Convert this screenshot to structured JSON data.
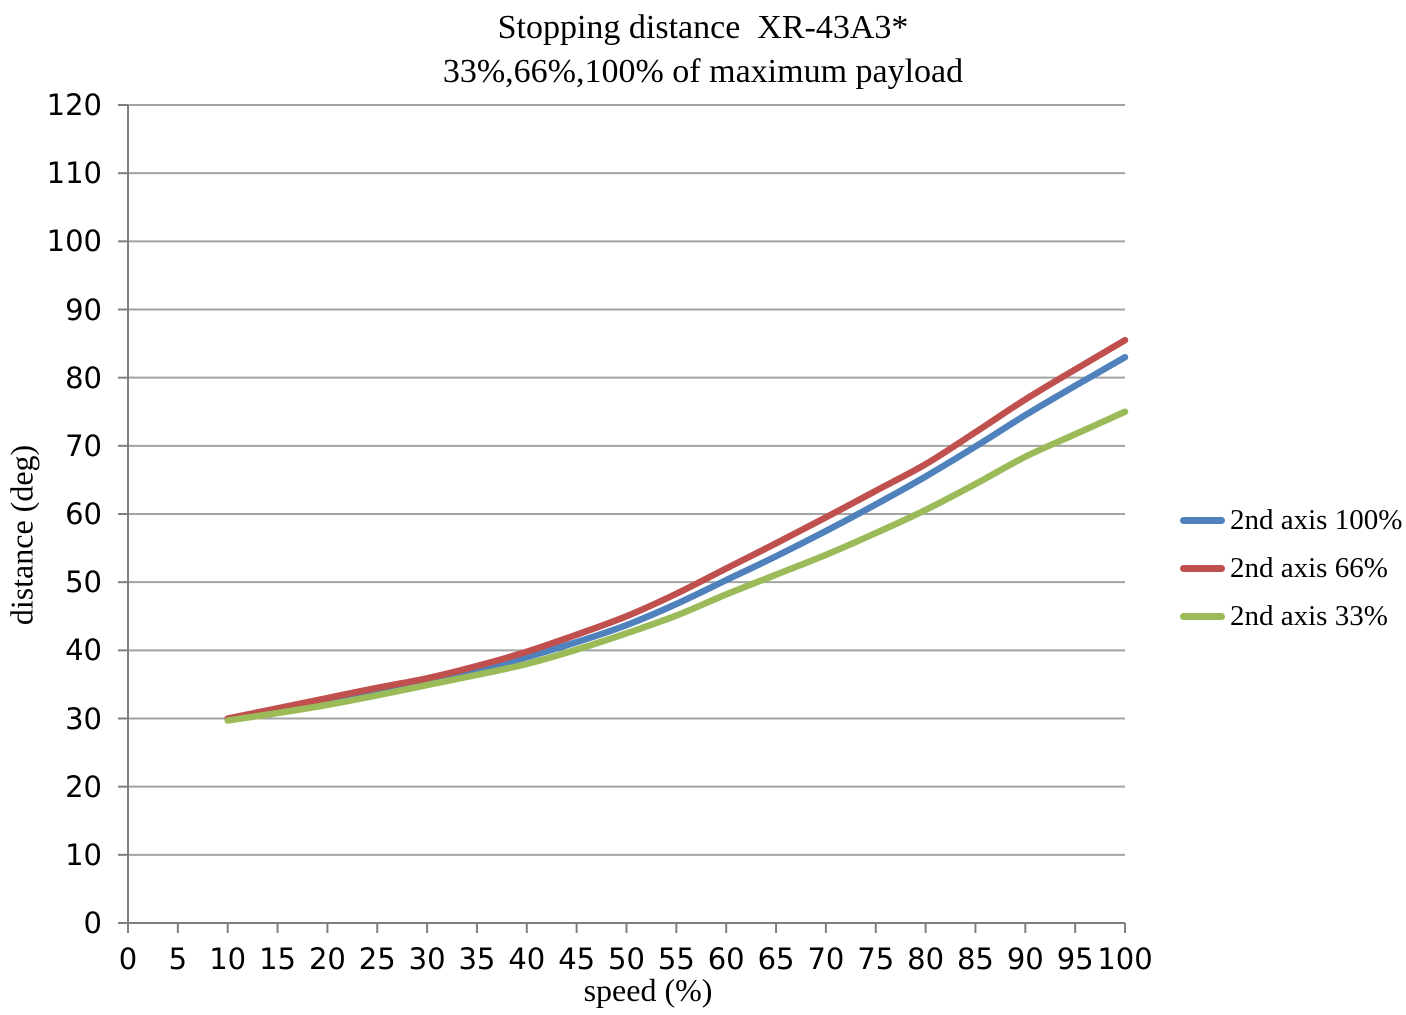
{
  "chart_data": {
    "type": "line",
    "title": "Stopping distance  XR-43A3*",
    "subtitle": "33%,66%,100% of maximum payload",
    "xlabel": "speed (%)",
    "ylabel": "distance (deg)",
    "xlim": [
      0,
      100
    ],
    "ylim": [
      0,
      120
    ],
    "xticks": [
      0,
      5,
      10,
      15,
      20,
      25,
      30,
      35,
      40,
      45,
      50,
      55,
      60,
      65,
      70,
      75,
      80,
      85,
      90,
      95,
      100
    ],
    "yticks": [
      0,
      10,
      20,
      30,
      40,
      50,
      60,
      70,
      80,
      90,
      100,
      110,
      120
    ],
    "grid": "horizontal",
    "legend_position": "right",
    "x": [
      10,
      15,
      20,
      25,
      30,
      35,
      40,
      45,
      50,
      55,
      60,
      65,
      70,
      75,
      80,
      85,
      90,
      95,
      100
    ],
    "series": [
      {
        "name": "2nd axis 100%",
        "color": "#4F81BD",
        "values": [
          29.8,
          31,
          32.3,
          33.8,
          35.3,
          37,
          39,
          41.2,
          43.7,
          46.8,
          50.3,
          53.8,
          57.5,
          61.4,
          65.5,
          69.9,
          74.5,
          78.8,
          83
        ]
      },
      {
        "name": "2nd axis 66%",
        "color": "#C0504D",
        "values": [
          30,
          31.5,
          33,
          34.5,
          35.9,
          37.7,
          39.8,
          42.3,
          45,
          48.3,
          52,
          55.7,
          59.5,
          63.4,
          67.3,
          72,
          76.8,
          81.2,
          85.5
        ]
      },
      {
        "name": "2nd axis 33%",
        "color": "#9BBB59",
        "values": [
          29.7,
          30.8,
          32,
          33.4,
          34.9,
          36.4,
          38,
          40.1,
          42.5,
          45.1,
          48.2,
          51.1,
          54,
          57.2,
          60.6,
          64.4,
          68.4,
          71.7,
          75
        ]
      }
    ],
    "colors": {
      "gridline": "#A3A3A3",
      "axis": "#7F7F7F",
      "text": "#000000"
    }
  }
}
